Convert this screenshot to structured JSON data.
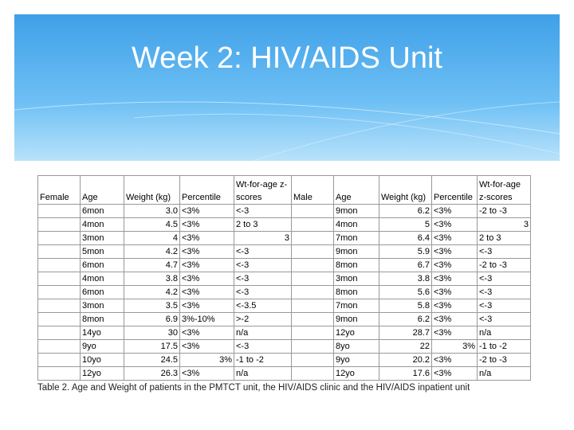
{
  "title": "Week 2: HIV/AIDS Unit",
  "table": {
    "header": [
      "Female",
      "Age",
      "Weight (kg)",
      "Percentile",
      "Wt-for-age z-scores",
      "Male",
      "Age",
      "Weight (kg)",
      "Percentile",
      "Wt-for-age z-scores"
    ],
    "rows": [
      [
        "",
        "6mon",
        "3.0",
        "<3%",
        "<-3",
        "",
        "9mon",
        "6.2",
        "<3%",
        "-2 to -3"
      ],
      [
        "",
        "4mon",
        "4.5",
        "<3%",
        "2 to 3",
        "",
        "4mon",
        "5",
        "<3%",
        "3"
      ],
      [
        "",
        "3mon",
        "4",
        "<3%",
        "3",
        "",
        "7mon",
        "6.4",
        "<3%",
        "2 to 3"
      ],
      [
        "",
        "5mon",
        "4.2",
        "<3%",
        "<-3",
        "",
        "9mon",
        "5.9",
        "<3%",
        "<-3"
      ],
      [
        "",
        "6mon",
        "4.7",
        "<3%",
        "<-3",
        "",
        "8mon",
        "6.7",
        "<3%",
        "-2 to -3"
      ],
      [
        "",
        "4mon",
        "3.8",
        "<3%",
        "<-3",
        "",
        "3mon",
        "3.8",
        "<3%",
        "<-3"
      ],
      [
        "",
        "6mon",
        "4.2",
        "<3%",
        "<-3",
        "",
        "8mon",
        "5.6",
        "<3%",
        "<-3"
      ],
      [
        "",
        "3mon",
        "3.5",
        "<3%",
        "<-3.5",
        "",
        "7mon",
        "5.8",
        "<3%",
        "<-3"
      ],
      [
        "",
        "8mon",
        "6.9",
        "3%-10%",
        ">-2",
        "",
        "9mon",
        "6.2",
        "<3%",
        "<-3"
      ],
      [
        "",
        "14yo",
        "30",
        "<3%",
        "n/a",
        "",
        "12yo",
        "28.7",
        "<3%",
        "n/a"
      ],
      [
        "",
        "9yo",
        "17.5",
        "<3%",
        "<-3",
        "",
        "8yo",
        "22",
        "3%",
        "-1 to -2"
      ],
      [
        "",
        "10yo",
        "24.5",
        "3%",
        "-1 to -2",
        "",
        "9yo",
        "20.2",
        "<3%",
        "-2 to -3"
      ],
      [
        "",
        "12yo",
        "26.3",
        "<3%",
        "n/a",
        "",
        "12yo",
        "17.6",
        "<3%",
        "n/a"
      ]
    ],
    "caption": "Table 2. Age and Weight of patients in the PMTCT unit, the HIV/AIDS clinic and the HIV/AIDS inpatient unit"
  }
}
